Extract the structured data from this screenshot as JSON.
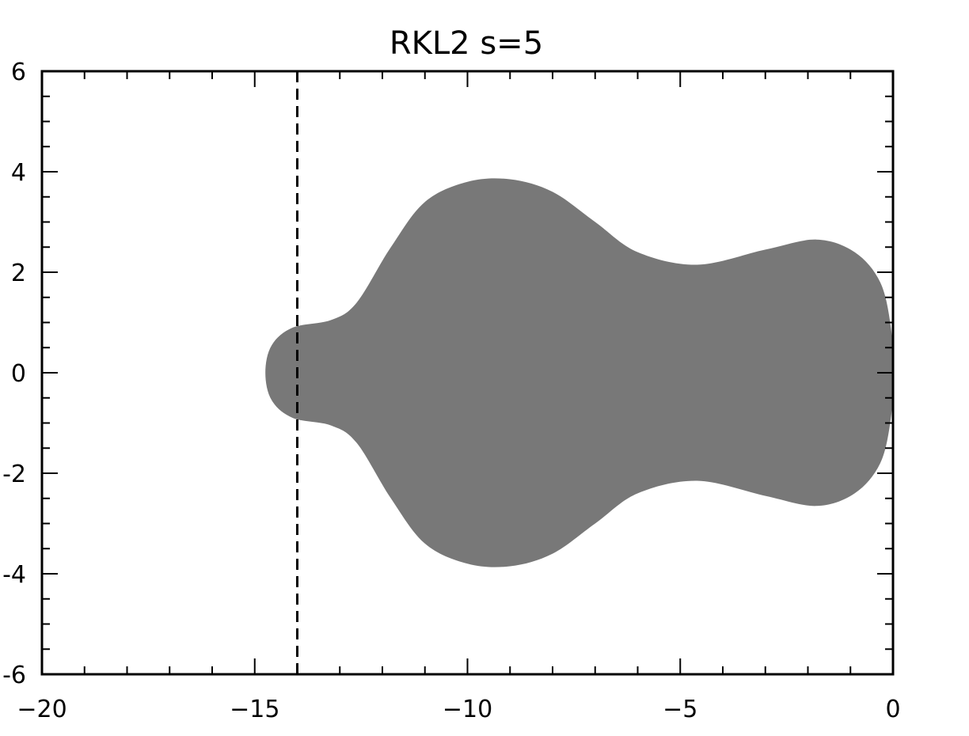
{
  "chart_data": {
    "type": "area",
    "title": "RKL2 s=5",
    "xlabel": "",
    "ylabel": "",
    "xlim": [
      -20,
      0
    ],
    "ylim": [
      -6,
      6
    ],
    "x_ticks": [
      -20,
      -15,
      -10,
      -5,
      0
    ],
    "y_ticks": [
      -6,
      -4,
      -2,
      0,
      2,
      4,
      6
    ],
    "x_tick_labels": [
      "−20",
      "−15",
      "−10",
      "−5",
      "0"
    ],
    "y_tick_labels": [
      "-6",
      "-4",
      "-2",
      "0",
      "2",
      "4",
      "6"
    ],
    "x_minor_step": 1,
    "y_minor_step": 0.5,
    "stability_region_upper_boundary": [
      [
        -14.75,
        0.0
      ],
      [
        -14.6,
        0.55
      ],
      [
        -14.1,
        0.9
      ],
      [
        -13.2,
        1.05
      ],
      [
        -12.6,
        1.4
      ],
      [
        -11.8,
        2.5
      ],
      [
        -11.0,
        3.4
      ],
      [
        -10.0,
        3.8
      ],
      [
        -9.0,
        3.85
      ],
      [
        -8.0,
        3.6
      ],
      [
        -7.0,
        3.0
      ],
      [
        -6.0,
        2.4
      ],
      [
        -4.6,
        2.15
      ],
      [
        -3.0,
        2.45
      ],
      [
        -1.8,
        2.65
      ],
      [
        -0.9,
        2.4
      ],
      [
        -0.3,
        1.8
      ],
      [
        -0.05,
        0.9
      ],
      [
        0.0,
        0.0
      ]
    ],
    "fill_color": "#787878",
    "vertical_line": {
      "x": -14.0,
      "style": "dashed",
      "color": "#000000"
    },
    "grid": false,
    "legend": "none"
  }
}
